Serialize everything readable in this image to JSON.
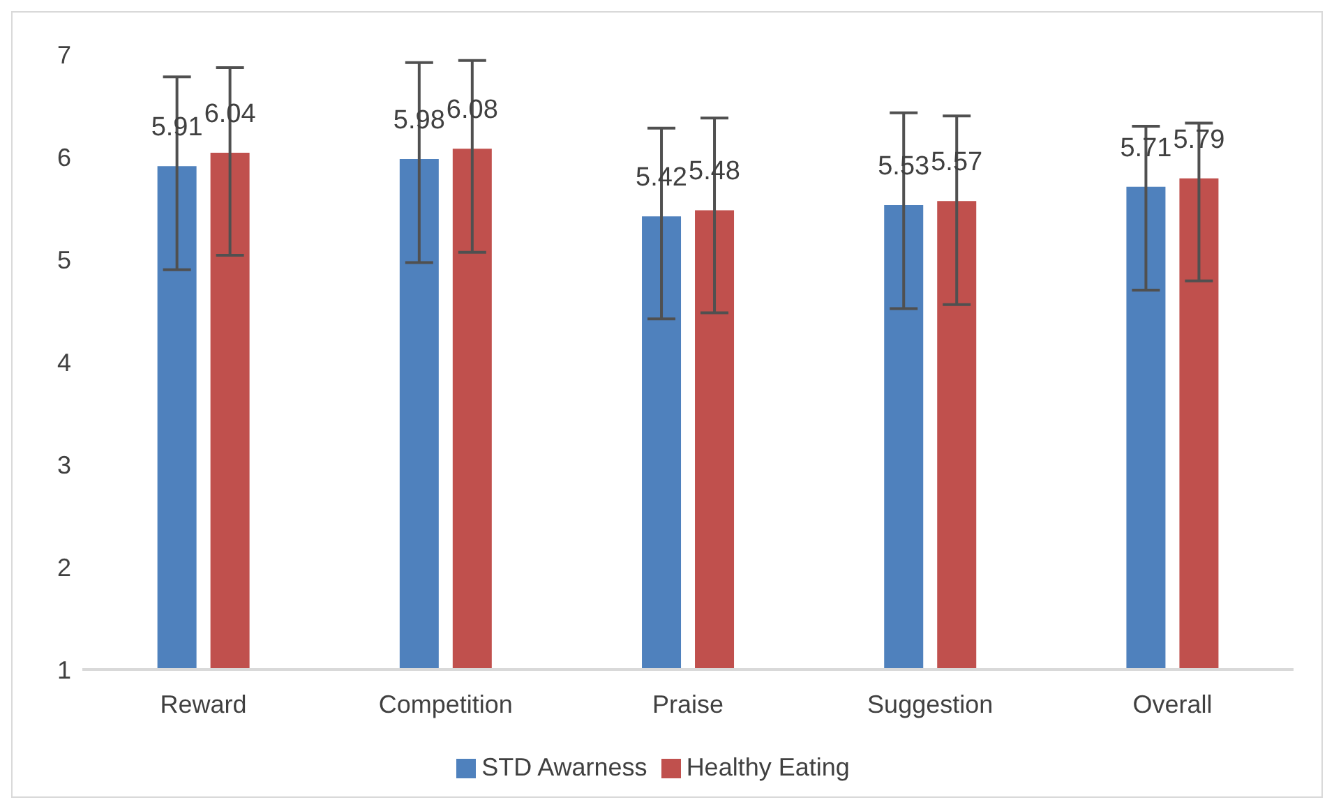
{
  "chart_data": {
    "type": "bar",
    "categories": [
      "Reward",
      "Competition",
      "Praise",
      "Suggestion",
      "Overall"
    ],
    "series": [
      {
        "name": "STD Awarness",
        "color": "#4f81bd",
        "values": [
          5.91,
          5.98,
          5.42,
          5.53,
          5.71
        ],
        "errors": [
          [
            4.9,
            6.78
          ],
          [
            4.97,
            6.92
          ],
          [
            4.42,
            6.28
          ],
          [
            4.52,
            6.43
          ],
          [
            4.7,
            6.3
          ]
        ]
      },
      {
        "name": "Healthy Eating",
        "color": "#c0504d",
        "values": [
          6.04,
          6.08,
          5.48,
          5.57,
          5.79
        ],
        "errors": [
          [
            5.04,
            6.87
          ],
          [
            5.07,
            6.94
          ],
          [
            4.48,
            6.38
          ],
          [
            4.56,
            6.4
          ],
          [
            4.79,
            6.33
          ]
        ]
      }
    ],
    "ylim": [
      1,
      7
    ],
    "yticks": [
      1,
      2,
      3,
      4,
      5,
      6,
      7
    ],
    "grid": false,
    "legend": "bottom",
    "data_labels": true
  }
}
